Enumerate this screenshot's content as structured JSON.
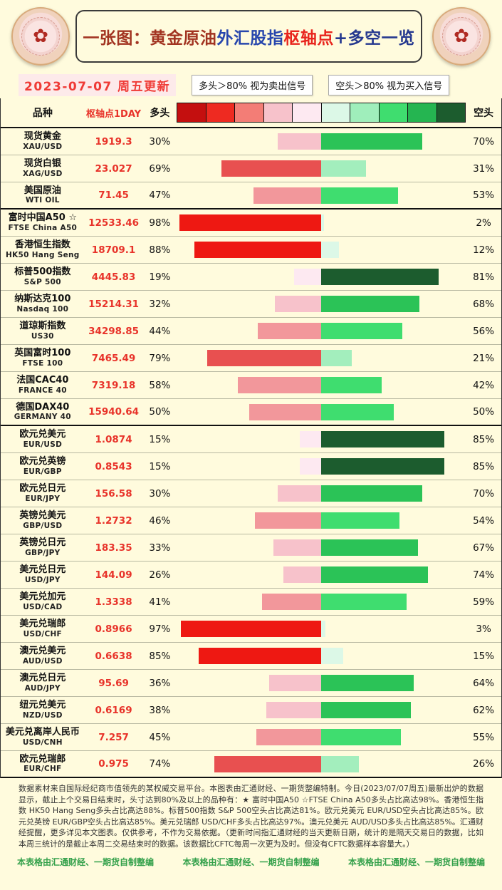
{
  "header": {
    "title_segments": [
      {
        "text": "一张图：黄金原油",
        "color": "#a23421"
      },
      {
        "text": "外汇股指",
        "color": "#2746ad"
      },
      {
        "text": "枢轴点",
        "color": "#e8251d"
      },
      {
        "text": "+多空一览",
        "color": "#25388f"
      }
    ],
    "mooncake_icon": "✿"
  },
  "meta": {
    "update_date": "2023-07-07 周五更新",
    "long_signal_note": "多头＞80% 视为卖出信号",
    "short_signal_note": "空头＞80% 视为买入信号"
  },
  "columns": {
    "variety": "品种",
    "pivot": "枢轴点1DAY",
    "long": "多头",
    "short": "空头"
  },
  "scale_colors": [
    "#c40f0f",
    "#ee2a21",
    "#f37d76",
    "#f7c2cb",
    "#fde9f1",
    "#dcf8e7",
    "#9feebb",
    "#3fdd6f",
    "#25b551",
    "#1c5c2e"
  ],
  "bar_colors": {
    "thresholds": [
      20,
      40,
      60,
      80
    ],
    "long": [
      "#fde9f1",
      "#f7c2cb",
      "#f2979b",
      "#e85050",
      "#ee1812"
    ],
    "short": [
      "#dcf8e7",
      "#a3eebd",
      "#3fdd6f",
      "#2bc357",
      "#1c5c2e"
    ]
  },
  "chart_data": {
    "type": "bar",
    "orientation": "horizontal-diverging",
    "unit": "%",
    "title": "黄金原油外汇股指枢轴点+多空一览",
    "series": [
      {
        "name": "多头"
      },
      {
        "name": "空头"
      }
    ],
    "rows": [
      {
        "name": "现货黄金",
        "symbol": "XAU/USD",
        "pivot": "1919.3",
        "long": 30,
        "short": 70,
        "group_end": false
      },
      {
        "name": "现货白银",
        "symbol": "XAG/USD",
        "pivot": "23.027",
        "long": 69,
        "short": 31,
        "group_end": false
      },
      {
        "name": "美国原油",
        "symbol": "WTI OIL",
        "pivot": "71.45",
        "long": 47,
        "short": 53,
        "group_end": true
      },
      {
        "name": "富时中国A50 ☆",
        "symbol": "FTSE China A50",
        "pivot": "12533.46",
        "long": 98,
        "short": 2,
        "group_end": false
      },
      {
        "name": "香港恒生指数",
        "symbol": "HK50 Hang Seng",
        "pivot": "18709.1",
        "long": 88,
        "short": 12,
        "group_end": false
      },
      {
        "name": "标普500指数",
        "symbol": "S&P 500",
        "pivot": "4445.83",
        "long": 19,
        "short": 81,
        "group_end": false
      },
      {
        "name": "纳斯达克100",
        "symbol": "Nasdaq 100",
        "pivot": "15214.31",
        "long": 32,
        "short": 68,
        "group_end": false
      },
      {
        "name": "道琼斯指数",
        "symbol": "US30",
        "pivot": "34298.85",
        "long": 44,
        "short": 56,
        "group_end": false
      },
      {
        "name": "英国富时100",
        "symbol": "FTSE 100",
        "pivot": "7465.49",
        "long": 79,
        "short": 21,
        "group_end": false
      },
      {
        "name": "法国CAC40",
        "symbol": "FRANCE 40",
        "pivot": "7319.18",
        "long": 58,
        "short": 42,
        "group_end": false
      },
      {
        "name": "德国DAX40",
        "symbol": "GERMANY 40",
        "pivot": "15940.64",
        "long": 50,
        "short": 50,
        "group_end": true
      },
      {
        "name": "欧元兑美元",
        "symbol": "EUR/USD",
        "pivot": "1.0874",
        "long": 15,
        "short": 85,
        "group_end": false
      },
      {
        "name": "欧元兑英镑",
        "symbol": "EUR/GBP",
        "pivot": "0.8543",
        "long": 15,
        "short": 85,
        "group_end": false
      },
      {
        "name": "欧元兑日元",
        "symbol": "EUR/JPY",
        "pivot": "156.58",
        "long": 30,
        "short": 70,
        "group_end": false
      },
      {
        "name": "英镑兑美元",
        "symbol": "GBP/USD",
        "pivot": "1.2732",
        "long": 46,
        "short": 54,
        "group_end": false
      },
      {
        "name": "英镑兑日元",
        "symbol": "GBP/JPY",
        "pivot": "183.35",
        "long": 33,
        "short": 67,
        "group_end": false
      },
      {
        "name": "美元兑日元",
        "symbol": "USD/JPY",
        "pivot": "144.09",
        "long": 26,
        "short": 74,
        "group_end": false
      },
      {
        "name": "美元兑加元",
        "symbol": "USD/CAD",
        "pivot": "1.3338",
        "long": 41,
        "short": 59,
        "group_end": false
      },
      {
        "name": "美元兑瑞郎",
        "symbol": "USD/CHF",
        "pivot": "0.8966",
        "long": 97,
        "short": 3,
        "group_end": false
      },
      {
        "name": "澳元兑美元",
        "symbol": "AUD/USD",
        "pivot": "0.6638",
        "long": 85,
        "short": 15,
        "group_end": false
      },
      {
        "name": "澳元兑日元",
        "symbol": "AUD/JPY",
        "pivot": "95.69",
        "long": 36,
        "short": 64,
        "group_end": false
      },
      {
        "name": "纽元兑美元",
        "symbol": "NZD/USD",
        "pivot": "0.6169",
        "long": 38,
        "short": 62,
        "group_end": false
      },
      {
        "name": "美元兑离岸人民币",
        "symbol": "USD/CNH",
        "pivot": "7.257",
        "long": 45,
        "short": 55,
        "group_end": false
      },
      {
        "name": "欧元兑瑞郎",
        "symbol": "EUR/CHF",
        "pivot": "0.975",
        "long": 74,
        "short": 26,
        "group_end": true
      }
    ]
  },
  "footnote": "数据素材来自国际经纪商市值领先的某权威交易平台。本图表由汇通财经、一期货整编特制。今日(2023/07/07周五)最新出炉的数据显示，截止上个交易日结束时，头寸达到80%及以上的品种有：★ 富时中国A50 ☆FTSE China A50多头占比高达98%。香港恒生指数 HK50 Hang Seng多头占比高达88%。标普500指数 S&P 500空头占比高达81%。欧元兑美元 EUR/USD空头占比高达85%。欧元兑英镑 EUR/GBP空头占比高达85%。美元兑瑞郎 USD/CHF多头占比高达97%。澳元兑美元 AUD/USD多头占比高达85%。汇通财经提醒，更多详见本文图表。仅供参考，不作为交易依据。（更新时间指汇通财经的当天更新日期，统计的是隔天交易日的数据，比如本周三统计的是截止本周二交易结束时的数据。该数据比CFTC每周一次更为及时。但没有CFTC数据样本容量大。）",
  "footer": {
    "credit": "本表格由汇通财经、一期货自制整编"
  }
}
